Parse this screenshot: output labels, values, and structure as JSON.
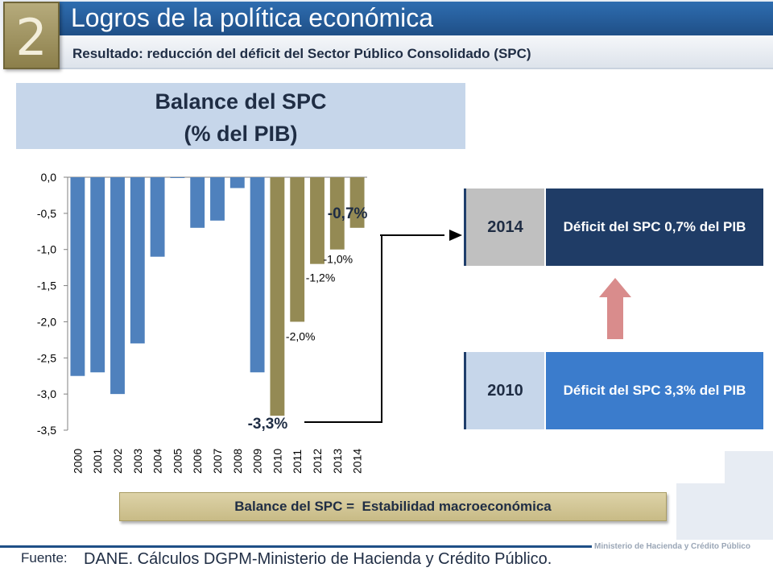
{
  "header": {
    "section_number": "2",
    "title": "Logros de la política económica",
    "subtitle": "Resultado: reducción del déficit del Sector Público Consolidado (SPC)"
  },
  "chart_header": {
    "line1": "Balance del SPC",
    "line2": "(% del PIB)"
  },
  "chart_data": {
    "type": "bar",
    "title": "",
    "xlabel": "",
    "ylabel": "",
    "categories": [
      "2000",
      "2001",
      "2002",
      "2003",
      "2004",
      "2005",
      "2006",
      "2007",
      "2008",
      "2009",
      "2010",
      "2011",
      "2012",
      "2013",
      "2014"
    ],
    "values": [
      -2.75,
      -2.7,
      -3.0,
      -2.3,
      -1.1,
      -0.01,
      -0.7,
      -0.6,
      -0.15,
      -2.7,
      -3.3,
      -2.0,
      -1.2,
      -1.0,
      -0.7
    ],
    "highlight_start": "2010",
    "ylim": [
      -3.5,
      0.0
    ],
    "yticks": [
      "0,0",
      "-0,5",
      "-1,0",
      "-1,5",
      "-2,0",
      "-2,5",
      "-3,0",
      "-3,5"
    ],
    "grid": false,
    "colors": {
      "base": "#4f81bd",
      "highlight": "#948a54"
    },
    "data_labels": [
      {
        "category": "2010",
        "text": "-3,3%",
        "bold": true
      },
      {
        "category": "2011",
        "text": "-2,0%",
        "bold": false
      },
      {
        "category": "2012",
        "text": "-1,2%",
        "bold": false
      },
      {
        "category": "2013",
        "text": "-1,0%",
        "bold": false
      },
      {
        "category": "2014",
        "text": "-0,7%",
        "bold": true
      }
    ]
  },
  "panels": {
    "year_2014": "2014",
    "deficit_2014": "Déficit del SPC 0,7% del PIB",
    "year_2010": "2010",
    "deficit_2010": "Déficit del SPC 3,3% del PIB"
  },
  "banner": "Balance del SPC =  Estabilidad macroeconómica",
  "footer": {
    "source_label": "Fuente:",
    "source_text": "DANE. Cálculos DGPM-Ministerio de Hacienda y Crédito Público.",
    "ministry": "Ministerio de Hacienda y Crédito Público"
  },
  "colors": {
    "title_bar": "#1f4f87",
    "panel_dark": "#1f3c66",
    "panel_light": "#3b7ccc",
    "arrow": "#d98c8c"
  }
}
